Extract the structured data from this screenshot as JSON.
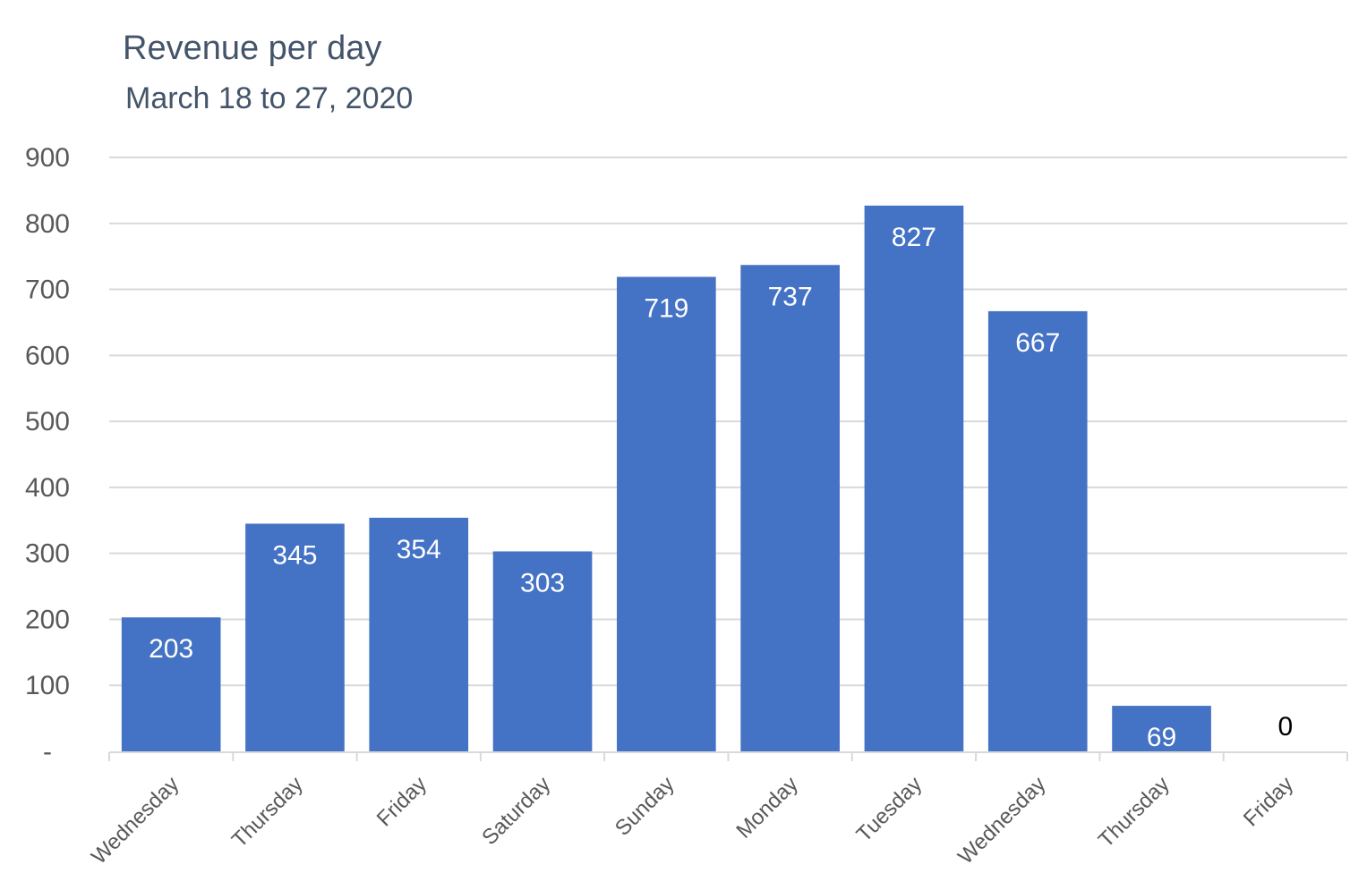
{
  "chart_data": {
    "type": "bar",
    "title": "Revenue per day",
    "subtitle": "March 18 to 27, 2020",
    "categories": [
      "Wednesday",
      "Thursday",
      "Friday",
      "Saturday",
      "Sunday",
      "Monday",
      "Tuesday",
      "Wednesday",
      "Thursday",
      "Friday"
    ],
    "values": [
      203,
      345,
      354,
      303,
      719,
      737,
      827,
      667,
      69,
      0
    ],
    "data_labels": [
      "203",
      "345",
      "354",
      "303",
      "719",
      "737",
      "827",
      "667",
      "69",
      "0"
    ],
    "yticks": [
      0,
      100,
      200,
      300,
      400,
      500,
      600,
      700,
      800,
      900
    ],
    "ytick_labels": [
      "-",
      "100",
      "200",
      "300",
      "400",
      "500",
      "600",
      "700",
      "800",
      "900"
    ],
    "ylim": [
      0,
      900
    ],
    "xlabel": "",
    "ylabel": "",
    "grid": true,
    "legend": "none",
    "colors": {
      "bar": "#4472c4",
      "gridline": "#d9d9d9",
      "axis": "#d9d9d9",
      "title": "#44546a",
      "tick_text": "#595959",
      "label_inside": "#ffffff",
      "label_outside": "#000000"
    }
  }
}
